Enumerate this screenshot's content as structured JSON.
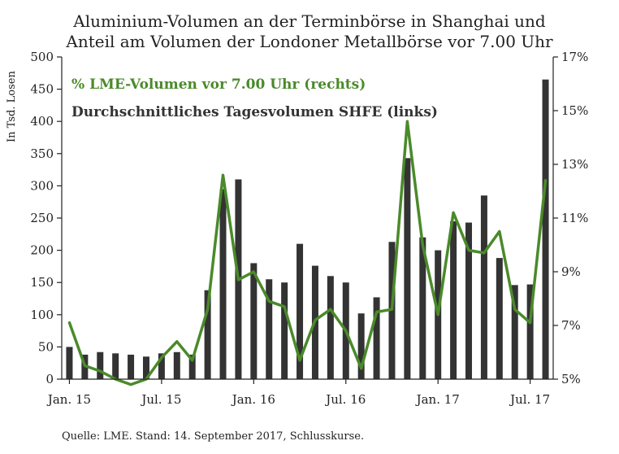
{
  "chart_data": {
    "type": "bar",
    "title_lines": [
      "Aluminium-Volumen an der Terminbörse in Shanghai und",
      "Anteil am Volumen der Londoner Metallbörse vor 7.00 Uhr"
    ],
    "ylabel_left": "In Tsd. Losen",
    "source": "Quelle: LME. Stand: 14. September 2017, Schlusskurse.",
    "x_tick_labels": [
      {
        "label": "Jan. 15",
        "index": 0
      },
      {
        "label": "Jul. 15",
        "index": 6
      },
      {
        "label": "Jan. 16",
        "index": 12
      },
      {
        "label": "Jul. 16",
        "index": 18
      },
      {
        "label": "Jan. 17",
        "index": 24
      },
      {
        "label": "Jul. 17",
        "index": 30
      }
    ],
    "y_left": {
      "min": 0,
      "max": 500,
      "ticks": [
        "0",
        "50",
        "100",
        "150",
        "200",
        "250",
        "300",
        "350",
        "400",
        "450",
        "500"
      ]
    },
    "y_right": {
      "min": 5,
      "max": 17,
      "ticks": [
        "5%",
        "7%",
        "9%",
        "11%",
        "13%",
        "15%",
        "17%"
      ]
    },
    "legend_placement": "top-left",
    "grid": false,
    "series": [
      {
        "name": "Durchschnittliches Tagesvolumen SHFE (links)",
        "type": "bar",
        "axis": "left",
        "color": "#333333",
        "values": [
          50,
          38,
          42,
          40,
          38,
          35,
          40,
          42,
          38,
          138,
          295,
          310,
          180,
          155,
          150,
          210,
          176,
          160,
          150,
          102,
          127,
          213,
          343,
          220,
          200,
          245,
          243,
          285,
          188,
          146,
          147,
          465
        ]
      },
      {
        "name": "% LME-Volumen vor 7.00 Uhr (rechts)",
        "type": "line",
        "axis": "right",
        "color": "#4a8a2a",
        "values": [
          7.1,
          5.5,
          5.3,
          5.0,
          4.8,
          5.0,
          5.8,
          6.4,
          5.7,
          7.6,
          12.6,
          8.7,
          9.0,
          7.9,
          7.7,
          5.7,
          7.2,
          7.6,
          6.8,
          5.4,
          7.5,
          7.6,
          14.6,
          10.0,
          7.4,
          11.2,
          9.8,
          9.7,
          10.5,
          7.6,
          7.1,
          12.4
        ]
      }
    ]
  }
}
